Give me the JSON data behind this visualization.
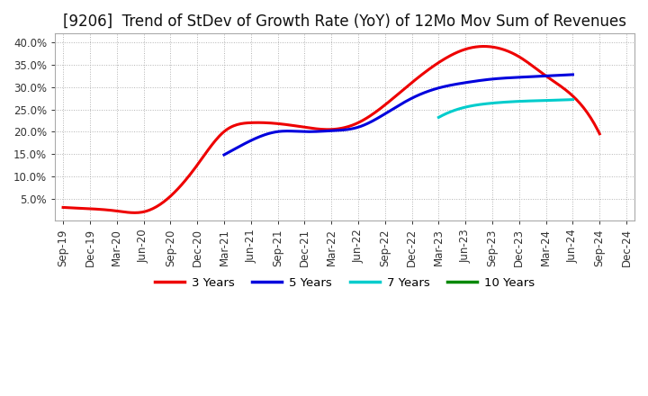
{
  "title": "[9206]  Trend of StDev of Growth Rate (YoY) of 12Mo Mov Sum of Revenues",
  "ylim": [
    0.0,
    0.42
  ],
  "yticks": [
    0.05,
    0.1,
    0.15,
    0.2,
    0.25,
    0.3,
    0.35,
    0.4
  ],
  "ytick_labels": [
    "5.0%",
    "10.0%",
    "15.0%",
    "20.0%",
    "25.0%",
    "30.0%",
    "35.0%",
    "40.0%"
  ],
  "x_labels": [
    "Sep-19",
    "Dec-19",
    "Mar-20",
    "Jun-20",
    "Sep-20",
    "Dec-20",
    "Mar-21",
    "Jun-21",
    "Sep-21",
    "Dec-21",
    "Mar-22",
    "Jun-22",
    "Sep-22",
    "Dec-22",
    "Mar-23",
    "Jun-23",
    "Sep-23",
    "Dec-23",
    "Mar-24",
    "Jun-24",
    "Sep-24",
    "Dec-24"
  ],
  "series_3yr": {
    "color": "#EE0000",
    "linewidth": 2.2,
    "data_x": [
      0,
      1,
      2,
      3,
      4,
      5,
      6,
      7,
      8,
      9,
      10,
      11,
      12,
      13,
      14,
      15,
      16,
      17,
      18,
      19,
      20
    ],
    "data_y": [
      0.03,
      0.027,
      0.022,
      0.02,
      0.055,
      0.125,
      0.2,
      0.22,
      0.218,
      0.21,
      0.205,
      0.22,
      0.26,
      0.31,
      0.355,
      0.385,
      0.39,
      0.368,
      0.325,
      0.28,
      0.195
    ]
  },
  "series_5yr": {
    "color": "#0000DD",
    "linewidth": 2.2,
    "data_x": [
      6,
      7,
      8,
      9,
      10,
      11,
      12,
      13,
      14,
      15,
      16,
      17,
      18,
      19
    ],
    "data_y": [
      0.148,
      0.18,
      0.2,
      0.2,
      0.202,
      0.21,
      0.24,
      0.275,
      0.298,
      0.31,
      0.318,
      0.322,
      0.325,
      0.328
    ]
  },
  "series_7yr": {
    "color": "#00CCCC",
    "linewidth": 2.2,
    "data_x": [
      14,
      15,
      16,
      17,
      18,
      19
    ],
    "data_y": [
      0.232,
      0.255,
      0.264,
      0.268,
      0.27,
      0.272
    ]
  },
  "series_10yr": {
    "color": "#008800",
    "linewidth": 2.2,
    "data_x": [],
    "data_y": []
  },
  "legend_labels": [
    "3 Years",
    "5 Years",
    "7 Years",
    "10 Years"
  ],
  "legend_colors": [
    "#EE0000",
    "#0000DD",
    "#00CCCC",
    "#008800"
  ],
  "background_color": "#FFFFFF",
  "grid_color": "#AAAAAA",
  "title_fontsize": 12,
  "tick_fontsize": 8.5
}
